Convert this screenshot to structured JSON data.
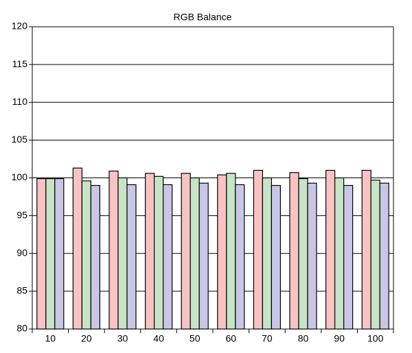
{
  "chart_data": {
    "type": "bar",
    "title": "RGB Balance",
    "categories": [
      "10",
      "20",
      "30",
      "40",
      "50",
      "60",
      "70",
      "80",
      "90",
      "100"
    ],
    "series": [
      {
        "color": "#f9c3c3",
        "values": [
          99.9,
          101.3,
          100.9,
          100.6,
          100.6,
          100.4,
          101.0,
          100.7,
          101.0,
          101.0
        ]
      },
      {
        "color": "#c6e5c6",
        "values": [
          99.9,
          99.6,
          100.0,
          100.2,
          100.0,
          100.6,
          100.0,
          99.9,
          100.0,
          99.7
        ]
      },
      {
        "color": "#c9c6e6",
        "values": [
          99.9,
          99.0,
          99.1,
          99.1,
          99.3,
          99.1,
          99.0,
          99.3,
          99.0,
          99.3
        ]
      }
    ],
    "ylim": [
      80,
      120
    ],
    "yticks": [
      80,
      85,
      90,
      95,
      100,
      105,
      110,
      115,
      120
    ],
    "grid": true
  }
}
